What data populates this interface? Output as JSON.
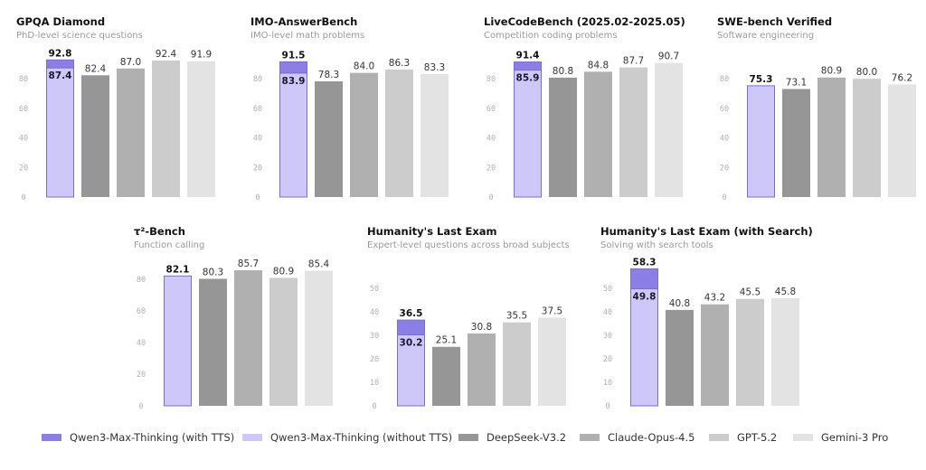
{
  "series_names": [
    "Qwen3-Max-Thinking (with TTS)",
    "Qwen3-Max-Thinking (without TTS)",
    "DeepSeek-V3.2",
    "Claude-Opus-4.5",
    "GPT-5.2",
    "Gemini-3 Pro"
  ],
  "colors": {
    "with_tts": "#8b7fe6",
    "without_tts": "#cdc8f8",
    "qwen_border": "#7a6dd9",
    "deepseek": "#969696",
    "claude": "#b0b0b0",
    "gpt": "#cccccc",
    "gemini": "#e3e3e3",
    "title": "#111111",
    "subtitle": "#9a9a9a",
    "tick": "#b0b0b0",
    "value_label": "#333333"
  },
  "legend": {
    "items": [
      {
        "label": "Qwen3-Max-Thinking (with TTS)",
        "color": "#8b7fe6"
      },
      {
        "label": "Qwen3-Max-Thinking (without TTS)",
        "color": "#cdc8f8"
      },
      {
        "label": "DeepSeek-V3.2",
        "color": "#969696"
      },
      {
        "label": "Claude-Opus-4.5",
        "color": "#b0b0b0"
      },
      {
        "label": "GPT-5.2",
        "color": "#cccccc"
      },
      {
        "label": "Gemini-3 Pro",
        "color": "#e3e3e3"
      }
    ]
  },
  "chart_data": [
    {
      "type": "bar",
      "title": "GPQA Diamond",
      "subtitle": "PhD-level science questions",
      "categories": [
        "Qwen3-Max-Thinking",
        "DeepSeek-V3.2",
        "Claude-Opus-4.5",
        "GPT-5.2",
        "Gemini-3 Pro"
      ],
      "qwen_with_tts": 92.8,
      "qwen_without_tts": 87.4,
      "others": [
        82.4,
        87.0,
        92.4,
        91.9
      ],
      "value_labels": [
        "92.8",
        "87.4",
        "82.4",
        "87.0",
        "92.4",
        "91.9"
      ],
      "yticks": [
        0,
        20,
        40,
        60,
        80
      ],
      "ylim": [
        0,
        100
      ],
      "grid": false
    },
    {
      "type": "bar",
      "title": "IMO-AnswerBench",
      "subtitle": "IMO-level math problems",
      "categories": [
        "Qwen3-Max-Thinking",
        "DeepSeek-V3.2",
        "Claude-Opus-4.5",
        "GPT-5.2",
        "Gemini-3 Pro"
      ],
      "qwen_with_tts": 91.5,
      "qwen_without_tts": 83.9,
      "others": [
        78.3,
        84.0,
        86.3,
        83.3
      ],
      "value_labels": [
        "91.5",
        "83.9",
        "78.3",
        "84.0",
        "86.3",
        "83.3"
      ],
      "yticks": [
        0,
        20,
        40,
        60,
        80
      ],
      "ylim": [
        0,
        100
      ],
      "grid": false
    },
    {
      "type": "bar",
      "title": "LiveCodeBench (2025.02-2025.05)",
      "subtitle": "Competition coding problems",
      "categories": [
        "Qwen3-Max-Thinking",
        "DeepSeek-V3.2",
        "Claude-Opus-4.5",
        "GPT-5.2",
        "Gemini-3 Pro"
      ],
      "qwen_with_tts": 91.4,
      "qwen_without_tts": 85.9,
      "others": [
        80.8,
        84.8,
        87.7,
        90.7
      ],
      "value_labels": [
        "91.4",
        "85.9",
        "80.8",
        "84.8",
        "87.7",
        "90.7"
      ],
      "yticks": [
        0,
        20,
        40,
        60,
        80
      ],
      "ylim": [
        0,
        100
      ],
      "grid": false
    },
    {
      "type": "bar",
      "title": "SWE-bench Verified",
      "subtitle": "Software engineering",
      "categories": [
        "Qwen3-Max-Thinking",
        "DeepSeek-V3.2",
        "Claude-Opus-4.5",
        "GPT-5.2",
        "Gemini-3 Pro"
      ],
      "qwen_with_tts": null,
      "qwen_without_tts": 75.3,
      "others": [
        73.1,
        80.9,
        80.0,
        76.2
      ],
      "value_labels": [
        "75.3",
        "73.1",
        "80.9",
        "80.0",
        "76.2"
      ],
      "yticks": [
        0,
        20,
        40,
        60,
        80
      ],
      "ylim": [
        0,
        100
      ],
      "grid": false
    },
    {
      "type": "bar",
      "title": "τ²-Bench",
      "subtitle": "Function calling",
      "categories": [
        "Qwen3-Max-Thinking",
        "DeepSeek-V3.2",
        "Claude-Opus-4.5",
        "GPT-5.2",
        "Gemini-3 Pro"
      ],
      "qwen_with_tts": null,
      "qwen_without_tts": 82.1,
      "others": [
        80.3,
        85.7,
        80.9,
        85.4
      ],
      "value_labels": [
        "82.1",
        "80.3",
        "85.7",
        "80.9",
        "85.4"
      ],
      "yticks": [
        0,
        20,
        40,
        60,
        80
      ],
      "ylim": [
        0,
        100
      ],
      "grid": false
    },
    {
      "type": "bar",
      "title": "Humanity's Last Exam",
      "subtitle": "Expert-level questions across broad subjects",
      "categories": [
        "Qwen3-Max-Thinking",
        "DeepSeek-V3.2",
        "Claude-Opus-4.5",
        "GPT-5.2",
        "Gemini-3 Pro"
      ],
      "qwen_with_tts": 36.5,
      "qwen_without_tts": 30.2,
      "others": [
        25.1,
        30.8,
        35.5,
        37.5
      ],
      "value_labels": [
        "36.5",
        "30.2",
        "25.1",
        "30.8",
        "35.5",
        "37.5"
      ],
      "yticks": [
        0,
        10,
        20,
        30,
        40,
        50
      ],
      "ylim": [
        0,
        60
      ],
      "grid": false
    },
    {
      "type": "bar",
      "title": "Humanity's Last Exam (with Search)",
      "subtitle": "Solving with search tools",
      "categories": [
        "Qwen3-Max-Thinking",
        "DeepSeek-V3.2",
        "Claude-Opus-4.5",
        "GPT-5.2",
        "Gemini-3 Pro"
      ],
      "qwen_with_tts": 58.3,
      "qwen_without_tts": 49.8,
      "others": [
        40.8,
        43.2,
        45.5,
        45.8
      ],
      "value_labels": [
        "58.3",
        "49.8",
        "40.8",
        "43.2",
        "45.5",
        "45.8"
      ],
      "yticks": [
        0,
        10,
        20,
        30,
        40,
        50
      ],
      "ylim": [
        0,
        60
      ],
      "grid": false
    }
  ]
}
